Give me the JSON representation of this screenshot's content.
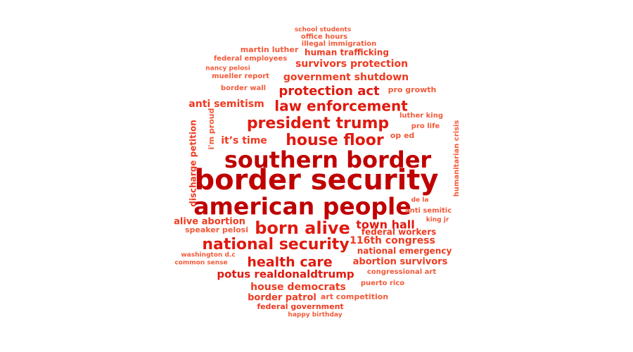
{
  "word_cloud": {
    "words": [
      {
        "text": "border security",
        "color": "#c00000"
      },
      {
        "text": "southern border",
        "color": "#c00000"
      },
      {
        "text": "american people",
        "color": "#c00000"
      },
      {
        "text": "president trump",
        "color": "#e01a10"
      },
      {
        "text": "house floor",
        "color": "#e01a10"
      },
      {
        "text": "law enforcement",
        "color": "#e01a10"
      },
      {
        "text": "protection act",
        "color": "#e01a10"
      },
      {
        "text": "born alive",
        "color": "#e01a10"
      },
      {
        "text": "national security",
        "color": "#e01a10"
      },
      {
        "text": "health care",
        "color": "#e01a10"
      },
      {
        "text": "potus realdonaldtrump",
        "color": "#e01a10"
      },
      {
        "text": "town hall",
        "color": "#e01a10"
      },
      {
        "text": "116th congress",
        "color": "#ee3a20"
      },
      {
        "text": "government shutdown",
        "color": "#ee3a20"
      },
      {
        "text": "survivors protection",
        "color": "#ee3a20"
      },
      {
        "text": "it’s time",
        "color": "#ee3a20"
      },
      {
        "text": "anti semitism",
        "color": "#ee3a20"
      },
      {
        "text": "house democrats",
        "color": "#ee3a20"
      },
      {
        "text": "abortion survivors",
        "color": "#ee3a20"
      },
      {
        "text": "national emergency",
        "color": "#ee3a20"
      },
      {
        "text": "federal workers",
        "color": "#ee3a20"
      },
      {
        "text": "alive abortion",
        "color": "#ee3a20"
      },
      {
        "text": "border patrol",
        "color": "#ee3a20"
      },
      {
        "text": "human trafficking",
        "color": "#ee3a20"
      },
      {
        "text": "discharge petition",
        "color": "#ee3a20"
      },
      {
        "text": "federal government",
        "color": "#ee3a20"
      },
      {
        "text": "speaker pelosi",
        "color": "#f25a3a"
      },
      {
        "text": "art competition",
        "color": "#f25a3a"
      },
      {
        "text": "i'm proud",
        "color": "#f25a3a"
      },
      {
        "text": "pro growth",
        "color": "#f25a3a"
      },
      {
        "text": "luther king",
        "color": "#f25a3a"
      },
      {
        "text": "pro life",
        "color": "#f25a3a"
      },
      {
        "text": "op ed",
        "color": "#f25a3a"
      },
      {
        "text": "anti semitic",
        "color": "#f25a3a"
      },
      {
        "text": "humanitarian crisis",
        "color": "#f25a3a"
      },
      {
        "text": "congressional art",
        "color": "#f25a3a"
      },
      {
        "text": "puerto rico",
        "color": "#f25a3a"
      },
      {
        "text": "martin luther",
        "color": "#f25a3a"
      },
      {
        "text": "federal employees",
        "color": "#f25a3a"
      },
      {
        "text": "mueller report",
        "color": "#f25a3a"
      },
      {
        "text": "border wall",
        "color": "#f25a3a"
      },
      {
        "text": "nancy pelosi",
        "color": "#f25a3a"
      },
      {
        "text": "illegal immigration",
        "color": "#f25a3a"
      },
      {
        "text": "office hours",
        "color": "#f25a3a"
      },
      {
        "text": "school students",
        "color": "#f25a3a"
      },
      {
        "text": "de la",
        "color": "#f25a3a"
      },
      {
        "text": "king jr",
        "color": "#f25a3a"
      },
      {
        "text": "washington d.c",
        "color": "#f25a3a"
      },
      {
        "text": "common sense",
        "color": "#f25a3a"
      },
      {
        "text": "happy birthday",
        "color": "#f25a3a"
      }
    ]
  }
}
